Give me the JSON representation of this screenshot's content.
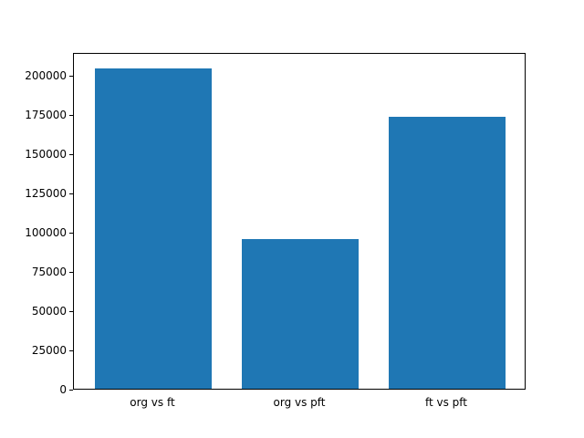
{
  "chart_data": {
    "type": "bar",
    "categories": [
      "org vs ft",
      "org vs pft",
      "ft vs pft"
    ],
    "values": [
      204000,
      95000,
      173000
    ],
    "title": "",
    "xlabel": "",
    "ylabel": "",
    "ylim": [
      0,
      214200
    ],
    "yticks": [
      0,
      25000,
      50000,
      75000,
      100000,
      125000,
      150000,
      175000,
      200000
    ],
    "grid": false,
    "legend": false,
    "bar_color": "#1f77b4",
    "background_color": "#ffffff",
    "spine_color": "#000000"
  }
}
